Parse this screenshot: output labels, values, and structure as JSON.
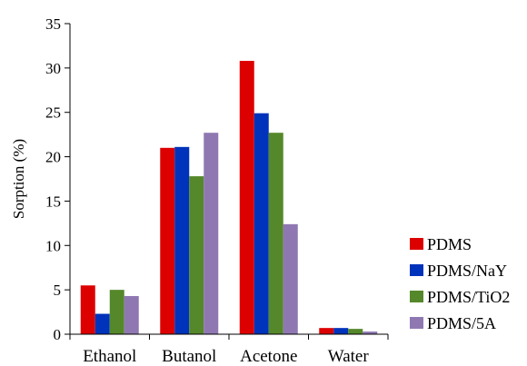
{
  "chart_data": {
    "type": "bar",
    "title": "",
    "xlabel": "",
    "ylabel": "Sorption (%)",
    "ylim": [
      0,
      35
    ],
    "yticks": [
      0,
      5,
      10,
      15,
      20,
      25,
      30,
      35
    ],
    "grid": false,
    "legend_position": "right",
    "categories": [
      "Ethanol",
      "Butanol",
      "Acetone",
      "Water"
    ],
    "series": [
      {
        "name": "PDMS",
        "color": "#dd0000",
        "values": [
          5.5,
          21.0,
          30.8,
          0.7
        ]
      },
      {
        "name": "PDMS/NaY",
        "color": "#0033bb",
        "values": [
          2.3,
          21.1,
          24.9,
          0.7
        ]
      },
      {
        "name": "PDMS/TiO2",
        "color": "#55882a",
        "values": [
          5.0,
          17.8,
          22.7,
          0.6
        ]
      },
      {
        "name": "PDMS/5A",
        "color": "#8f78b2",
        "values": [
          4.3,
          22.7,
          12.4,
          0.3
        ]
      }
    ]
  }
}
